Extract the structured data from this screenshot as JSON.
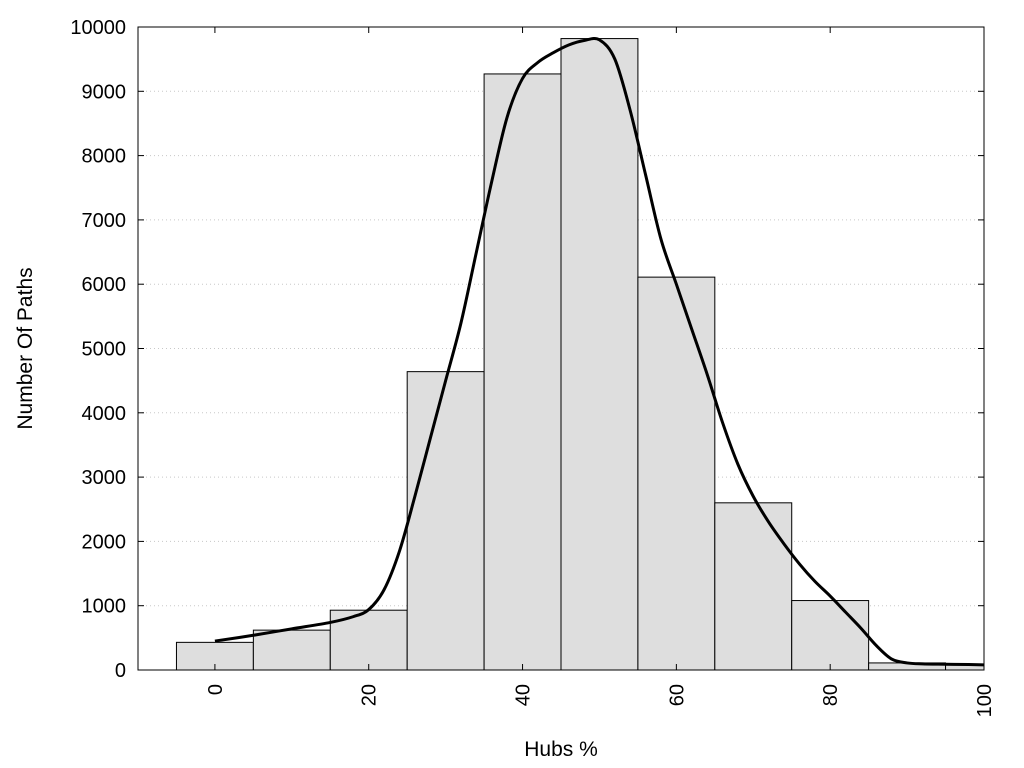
{
  "chart_data": {
    "type": "bar",
    "xlabel": "Hubs %",
    "ylabel": "Number Of Paths",
    "xlim": [
      -10,
      100
    ],
    "ylim": [
      0,
      10000
    ],
    "x_ticks": [
      "0",
      "20",
      "40",
      "60",
      "80",
      "100"
    ],
    "x_tick_values": [
      0,
      20,
      40,
      60,
      80,
      100
    ],
    "y_ticks": [
      "0",
      "1000",
      "2000",
      "3000",
      "4000",
      "5000",
      "6000",
      "7000",
      "8000",
      "9000",
      "10000"
    ],
    "y_tick_values": [
      0,
      1000,
      2000,
      3000,
      4000,
      5000,
      6000,
      7000,
      8000,
      9000,
      10000
    ],
    "grid": "horizontal-dotted",
    "bins": [
      {
        "from": -5,
        "to": 5,
        "value": 430
      },
      {
        "from": 5,
        "to": 15,
        "value": 620
      },
      {
        "from": 15,
        "to": 25,
        "value": 930
      },
      {
        "from": 25,
        "to": 35,
        "value": 4640
      },
      {
        "from": 35,
        "to": 45,
        "value": 9270
      },
      {
        "from": 45,
        "to": 55,
        "value": 9820
      },
      {
        "from": 55,
        "to": 65,
        "value": 6110
      },
      {
        "from": 65,
        "to": 75,
        "value": 2600
      },
      {
        "from": 75,
        "to": 85,
        "value": 1080
      },
      {
        "from": 85,
        "to": 95,
        "value": 110
      },
      {
        "from": 95,
        "to": 100,
        "value": 80
      }
    ],
    "bar_color": "#dedede",
    "curve": {
      "x": [
        0,
        5,
        10,
        15,
        18,
        20,
        22,
        24,
        26,
        28,
        30,
        32,
        34,
        36,
        38,
        40,
        42,
        44,
        46,
        48,
        50,
        52,
        54,
        56,
        58,
        60,
        62,
        64,
        66,
        68,
        70,
        72,
        74,
        76,
        78,
        80,
        82,
        84,
        86,
        88,
        90,
        92,
        95,
        98,
        100
      ],
      "y": [
        450,
        540,
        640,
        740,
        830,
        940,
        1250,
        1850,
        2700,
        3600,
        4500,
        5400,
        6500,
        7600,
        8600,
        9200,
        9450,
        9600,
        9720,
        9790,
        9800,
        9500,
        8700,
        7700,
        6700,
        6000,
        5300,
        4600,
        3850,
        3200,
        2700,
        2300,
        1960,
        1650,
        1380,
        1150,
        900,
        650,
        380,
        170,
        110,
        95,
        90,
        85,
        80
      ],
      "color": "#000000"
    }
  }
}
